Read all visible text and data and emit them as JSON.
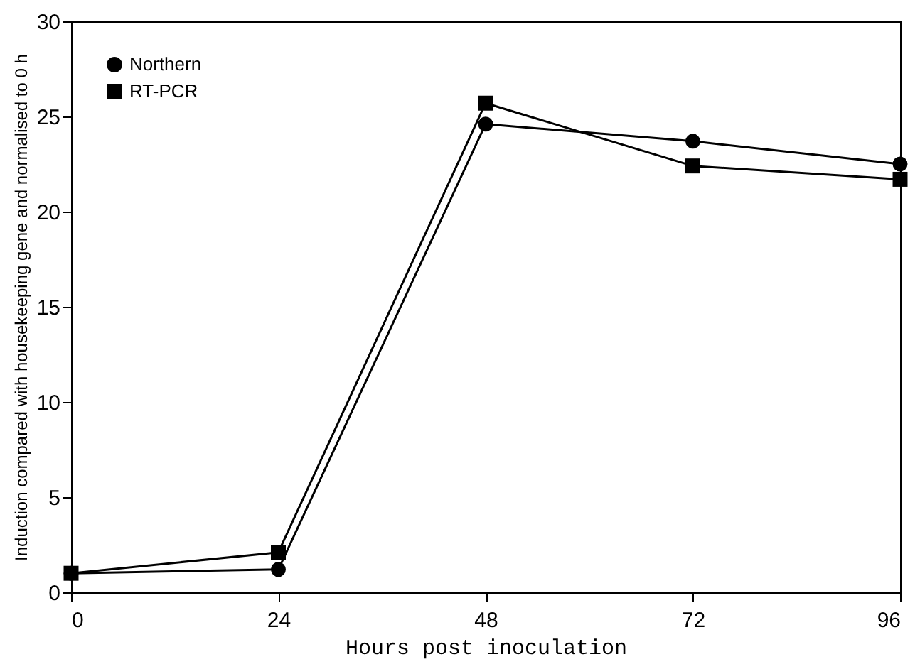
{
  "chart_data": {
    "type": "line",
    "xlabel": "Hours post inoculation",
    "ylabel": "Induction compared with housekeeping gene and normalised to 0 h",
    "x": [
      0,
      24,
      48,
      72,
      96
    ],
    "xlim": [
      0,
      96
    ],
    "xticks": [
      0,
      24,
      48,
      72,
      96
    ],
    "ylim": [
      0,
      30
    ],
    "yticks": [
      0,
      5,
      10,
      15,
      20,
      25,
      30
    ],
    "grid": false,
    "legend": "top left",
    "line_style": "solid",
    "series": [
      {
        "name": "Northern",
        "color": "#000000",
        "marker": "circle",
        "values": [
          1.0,
          1.2,
          24.6,
          23.7,
          22.5
        ]
      },
      {
        "name": "RT-PCR",
        "color": "#000000",
        "marker": "square",
        "values": [
          1.0,
          2.1,
          25.7,
          22.4,
          21.7
        ]
      }
    ]
  }
}
